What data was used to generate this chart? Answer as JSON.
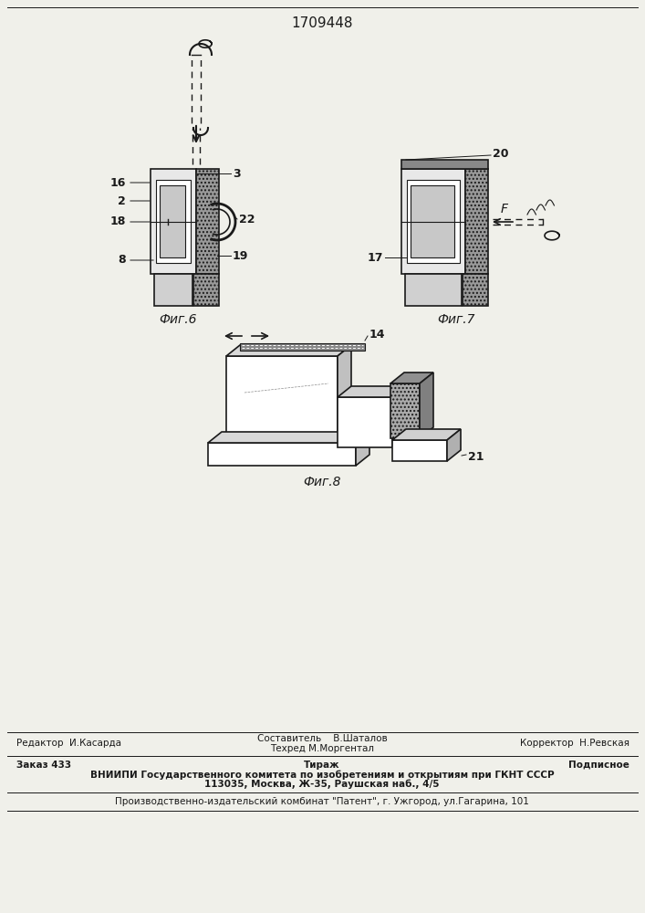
{
  "title": "1709448",
  "bg_color": "#f0f0ea",
  "line_color": "#1a1a1a",
  "fig6_label": "Фиг.6",
  "fig7_label": "Фиг.7",
  "fig8_label": "Фиг.8",
  "label_editor": "Редактор  И.Касарда",
  "label_sostav": "Составитель    В.Шаталов",
  "label_korrekt": "Корректор  Н.Ревская",
  "label_tehred": "Техред М.Моргентал",
  "footer_zakaz": "Заказ 433",
  "footer_tirazh": "Тираж",
  "footer_podp": "Подписное",
  "footer_vniip1": "ВНИИПИ Государственного комитета по изобретениям и открытиям при ГКНТ СССР",
  "footer_vniip2": "113035, Москва, Ж-35, Раушская наб., 4/5",
  "footer_patent": "Производственно-издательский комбинат \"Патент\", г. Ужгород, ул.Гагарина, 101"
}
